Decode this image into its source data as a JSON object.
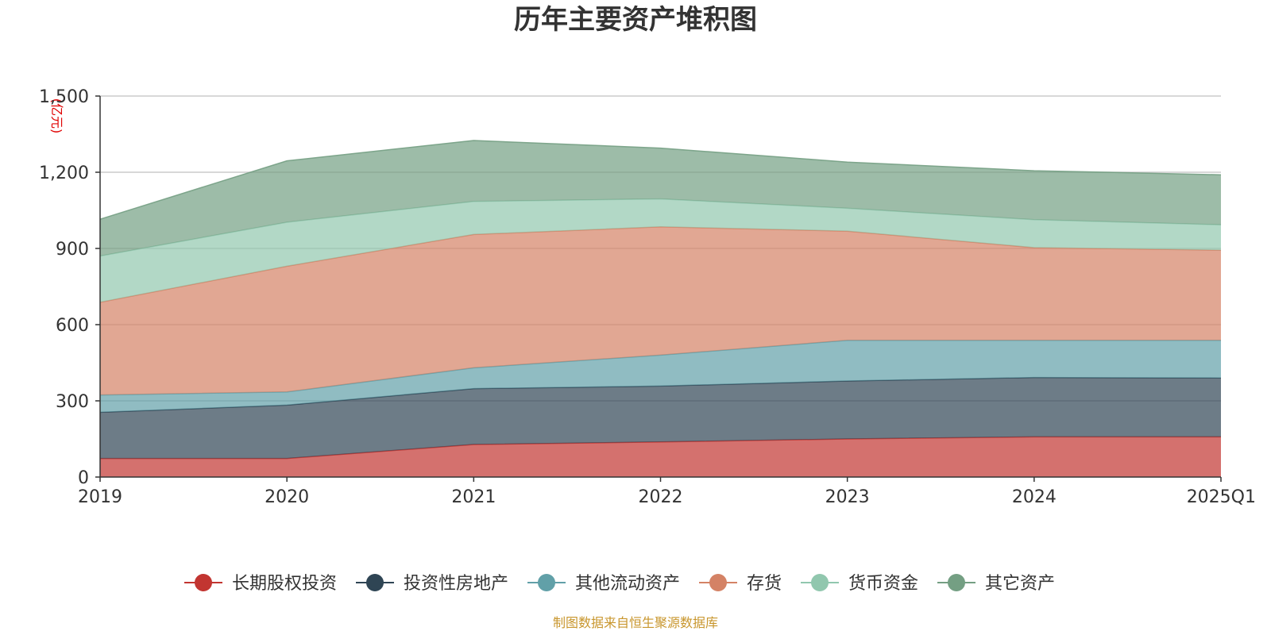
{
  "chart_data": {
    "type": "area",
    "stacked": true,
    "title": "历年主要资产堆积图",
    "unit_label": "(亿元)",
    "categories": [
      "2019",
      "2020",
      "2021",
      "2022",
      "2023",
      "2024",
      "2025Q1"
    ],
    "y_ticks": [
      "0",
      "300",
      "600",
      "900",
      "1,200",
      "1,500"
    ],
    "ylim": [
      0,
      1500
    ],
    "grid": true,
    "legend_position": "bottom",
    "series": [
      {
        "name": "长期股权投资",
        "color": "#c23531",
        "values": [
          73,
          73,
          128,
          138,
          150,
          158,
          158
        ]
      },
      {
        "name": "投资性房地产",
        "color": "#2f4554",
        "values": [
          182,
          210,
          220,
          220,
          228,
          234,
          232
        ]
      },
      {
        "name": "其他流动资产",
        "color": "#61a0a8",
        "values": [
          68,
          52,
          82,
          122,
          160,
          146,
          148
        ]
      },
      {
        "name": "存货",
        "color": "#d48265",
        "values": [
          365,
          495,
          525,
          505,
          430,
          365,
          355
        ]
      },
      {
        "name": "货币资金",
        "color": "#91c7ae",
        "values": [
          182,
          173,
          130,
          110,
          90,
          110,
          100
        ]
      },
      {
        "name": "其它资产",
        "color": "#749f83",
        "values": [
          145,
          242,
          240,
          200,
          182,
          193,
          197
        ]
      }
    ],
    "source": "制图数据来自恒生聚源数据库"
  }
}
